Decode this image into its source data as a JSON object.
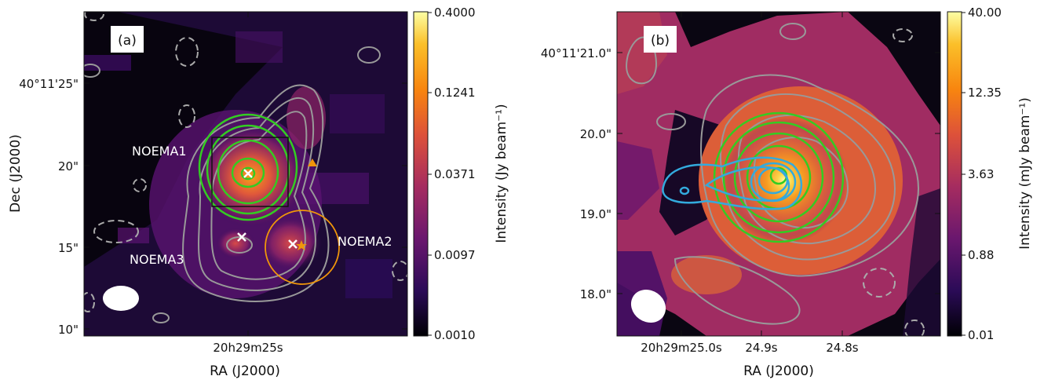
{
  "chart_data": [
    {
      "type": "heatmap",
      "panel_label": "(a)",
      "xlabel": "RA (J2000)",
      "ylabel": "Dec (J2000)",
      "x_ticks": [
        "20h29m25s"
      ],
      "y_ticks": [
        "40°11'25\"",
        "20\"",
        "15\"",
        "10\""
      ],
      "colorbar": {
        "label": "Intensity (Jy beam⁻¹)",
        "scale": "log",
        "ticks": [
          "0.4000",
          "0.1241",
          "0.0371",
          "0.0097",
          "0.0010"
        ],
        "range": [
          0.001,
          0.4
        ]
      },
      "annotations": [
        "NOEMA1",
        "NOEMA2",
        "NOEMA3"
      ],
      "markers": [
        {
          "type": "white-x",
          "label": "NOEMA1"
        },
        {
          "type": "white-x",
          "label": "NOEMA3"
        },
        {
          "type": "white-x",
          "label": "NOEMA2"
        },
        {
          "type": "orange-star"
        },
        {
          "type": "orange-triangle"
        }
      ],
      "overlays": [
        "green contours",
        "gray contours",
        "dashed gray contours",
        "black box",
        "orange circle",
        "white beam ellipse"
      ]
    },
    {
      "type": "heatmap",
      "panel_label": "(b)",
      "xlabel": "RA (J2000)",
      "ylabel": "",
      "x_ticks": [
        "20h29m25.0s",
        "24.9s",
        "24.8s"
      ],
      "y_ticks": [
        "40°11'21.0\"",
        "20.0\"",
        "19.0\"",
        "18.0\""
      ],
      "colorbar": {
        "label": "Intensity (mJy beam⁻¹)",
        "scale": "log",
        "ticks": [
          "40.00",
          "12.35",
          "3.63",
          "0.88",
          "0.01"
        ],
        "range": [
          0.01,
          40.0
        ]
      },
      "overlays": [
        "green contours",
        "cyan contours",
        "gray contours",
        "dashed gray contours",
        "white beam ellipse"
      ]
    }
  ],
  "colors": {
    "green_contour": "#33cc22",
    "cyan_contour": "#33aadd",
    "gray_contour": "#999999",
    "orange": "#f0960a",
    "colormap": [
      "#000004",
      "#2b0b57",
      "#6a176e",
      "#a52c60",
      "#dd513a",
      "#f8850f",
      "#fbbf29",
      "#fcffa4"
    ]
  }
}
